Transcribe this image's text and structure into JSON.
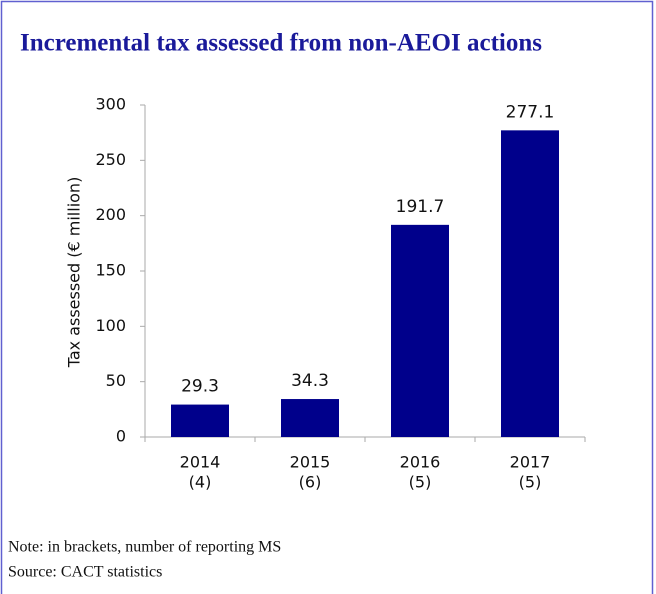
{
  "chart_data": {
    "type": "bar",
    "title": "Incremental tax assessed from non-AEOI actions",
    "y_label": "Tax assessed (€ million)",
    "categories": [
      [
        "2014",
        "(4)"
      ],
      [
        "2015",
        "(6)"
      ],
      [
        "2016",
        "(5)"
      ],
      [
        "2017",
        "(5)"
      ]
    ],
    "values": [
      29.3,
      34.3,
      191.7,
      277.1
    ],
    "color": "#00008b",
    "ylim": [
      0,
      300
    ],
    "yticks": [
      0,
      50,
      100,
      150,
      200,
      250,
      300
    ],
    "notes": [
      "Note: in brackets, number of reporting MS",
      "Source: CACT statistics"
    ]
  }
}
